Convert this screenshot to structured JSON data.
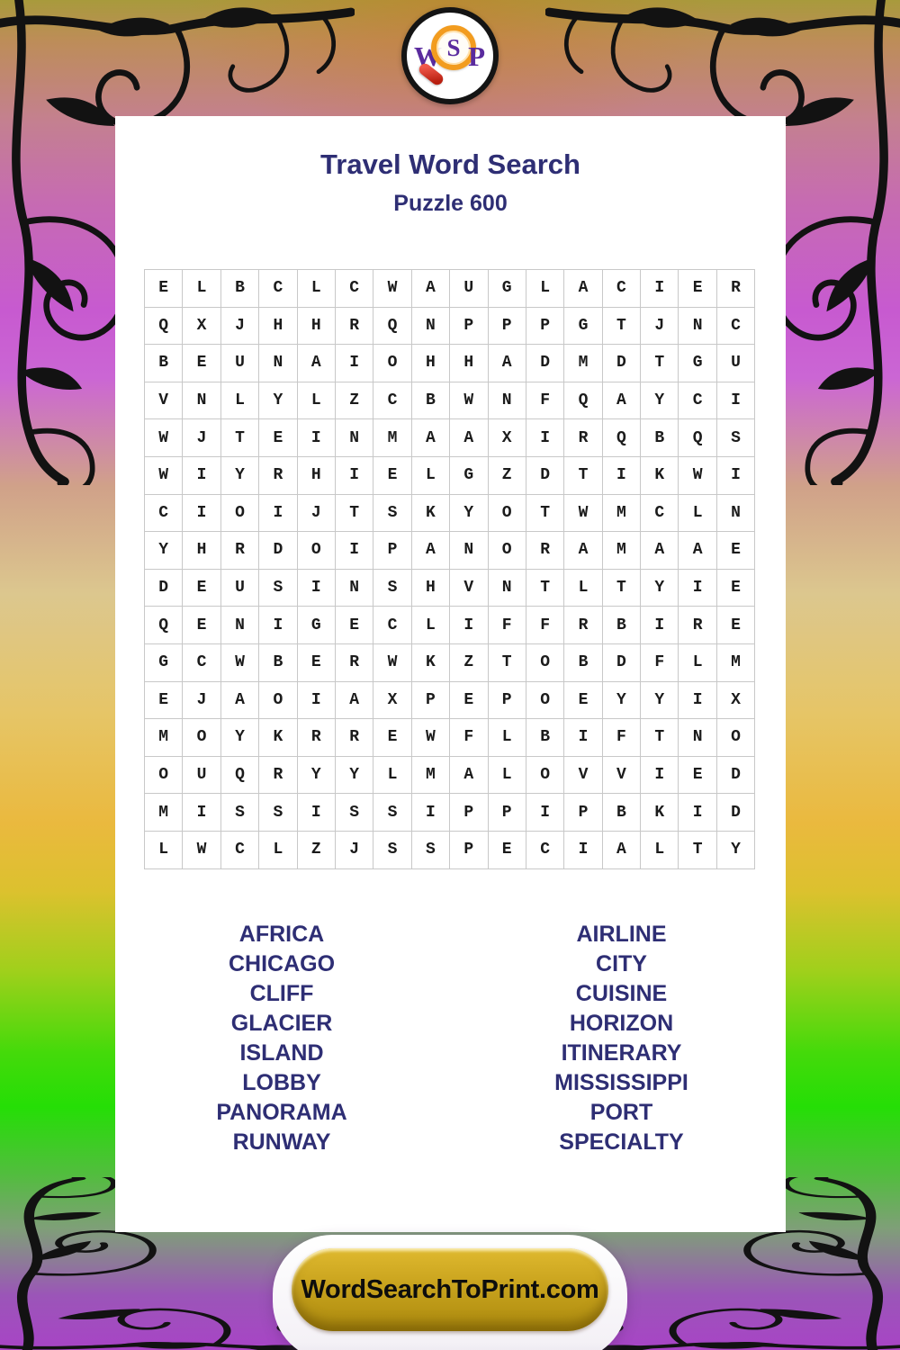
{
  "logo": {
    "letter_w": "W",
    "letter_s": "S",
    "letter_p": "P"
  },
  "header": {
    "title": "Travel Word Search",
    "subtitle": "Puzzle 600"
  },
  "puzzle_grid": {
    "columns": 16,
    "rows": [
      "ELBCLCWAUGLACIER",
      "QXJHHRQNPPPGTJNC",
      "BEUNAIOHHADMDTGU",
      "VNLYLZCBWNFQAYCI",
      "WJTEINMAAXIRQBQS",
      "WIYRHIELGZDTIKWI",
      "CIOIJTSKYOTWMCLN",
      "YHRDOIPANORAMAAE",
      "DEUSINSHVNTLTYIE",
      "QENIGECLIFFRBIRE",
      "GCWBERWKZTOBDFLM",
      "EJAOIAXPEPOEYYIX",
      "MOYKRREWFLBIFTNO",
      "OUQRYYLMALOVVIED",
      "MISSISSIPPIPBKID",
      "LWCLZJSSPECIALTY"
    ]
  },
  "word_list": {
    "left": [
      "AFRICA",
      "CHICAGO",
      "CLIFF",
      "GLACIER",
      "ISLAND",
      "LOBBY",
      "PANORAMA",
      "RUNWAY"
    ],
    "right": [
      "AIRLINE",
      "CITY",
      "CUISINE",
      "HORIZON",
      "ITINERARY",
      "MISSISSIPPI",
      "PORT",
      "SPECIALTY"
    ]
  },
  "footer": {
    "site_label": "WordSearchToPrint.com"
  },
  "colors": {
    "heading_navy": "#2e2e74",
    "grid_letter": "#1b1b1b",
    "grid_line": "#c8c8c8",
    "button_gold": "#caa41e",
    "logo_purple": "#5a2b9e",
    "magnifier_orange": "#f29c1f",
    "magnifier_handle_red": "#c22617",
    "background_magenta": "#c75ad0",
    "background_gold": "#eab93e",
    "background_green": "#25de06"
  }
}
